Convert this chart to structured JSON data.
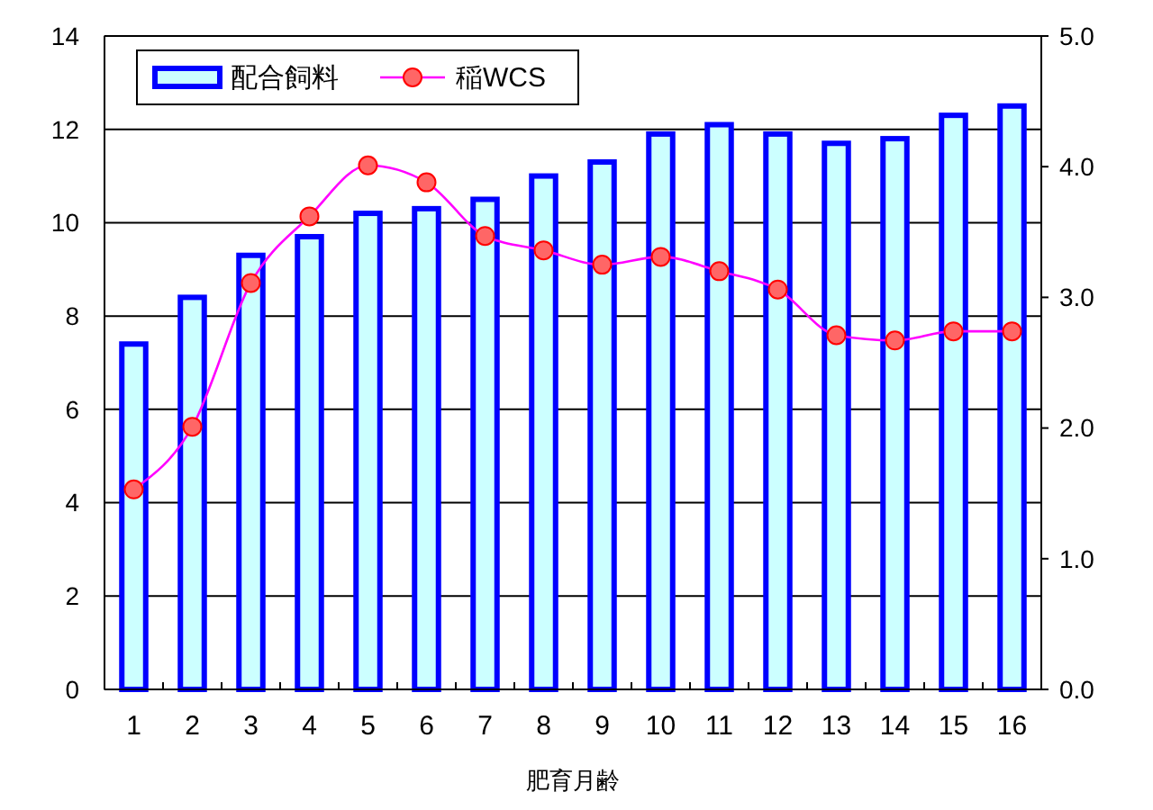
{
  "chart_data": {
    "type": "bar",
    "xlabel": "肥育月齢",
    "categories": [
      "1",
      "2",
      "3",
      "4",
      "5",
      "6",
      "7",
      "8",
      "9",
      "10",
      "11",
      "12",
      "13",
      "14",
      "15",
      "16"
    ],
    "series": [
      {
        "name": "配合飼料",
        "color": "#ccffff",
        "values": [
          7.4,
          8.4,
          9.3,
          9.7,
          10.2,
          10.3,
          10.5,
          11.0,
          11.3,
          11.9,
          12.1,
          11.9,
          11.7,
          11.8,
          12.3,
          12.5
        ]
      },
      {
        "name": "稲WCS",
        "type": "line",
        "axis": "y2",
        "color": "#ff00ff",
        "marker": "circle",
        "values": [
          1.53,
          2.01,
          3.11,
          3.62,
          4.01,
          3.88,
          3.47,
          3.36,
          3.25,
          3.31,
          3.2,
          3.06,
          2.71,
          2.67,
          2.74,
          2.74
        ]
      }
    ],
    "ylim": [
      0,
      14
    ],
    "yticks": [
      0,
      2,
      4,
      6,
      8,
      10,
      12,
      14
    ],
    "y2lim": [
      0,
      5
    ],
    "y2ticks": [
      {
        "value": 0,
        "label": "0.0"
      },
      {
        "value": 1,
        "label": "1.0"
      },
      {
        "value": 2,
        "label": "2.0"
      },
      {
        "value": 3,
        "label": "3.0"
      },
      {
        "value": 4,
        "label": "4.0"
      },
      {
        "value": 5,
        "label": "5.0"
      }
    ],
    "grid": "y",
    "legend": "top left"
  }
}
